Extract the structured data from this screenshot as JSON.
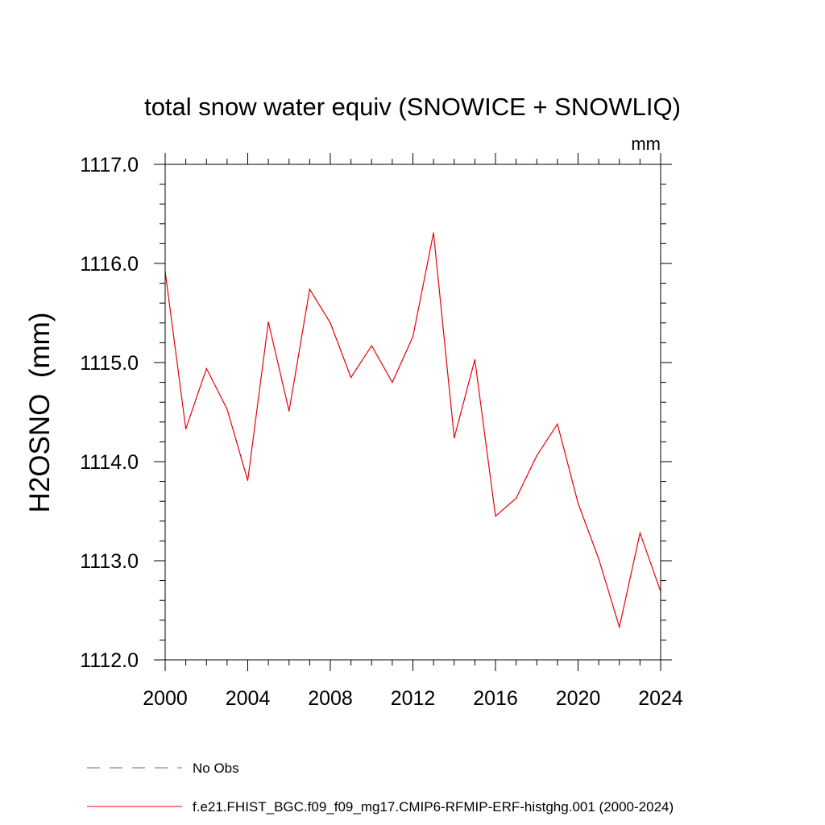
{
  "chart_data": {
    "type": "line",
    "title": "total snow water equiv (SNOWICE + SNOWLIQ)",
    "units_label": "mm",
    "ylabel": "H2OSNO  (mm)",
    "xlabel": "",
    "xlim": [
      2000,
      2024
    ],
    "ylim": [
      1112.0,
      1117.0
    ],
    "x_ticks": [
      2000,
      2004,
      2008,
      2012,
      2016,
      2020,
      2024
    ],
    "x_tick_labels": [
      "2000",
      "2004",
      "2008",
      "2012",
      "2016",
      "2020",
      "2024"
    ],
    "y_ticks": [
      1112.0,
      1113.0,
      1114.0,
      1115.0,
      1116.0,
      1117.0
    ],
    "y_tick_labels": [
      "1112.0",
      "1113.0",
      "1114.0",
      "1115.0",
      "1116.0",
      "1117.0"
    ],
    "grid": false,
    "legend_position": "bottom",
    "series": [
      {
        "name": "f.e21.FHIST_BGC.f09_f09_mg17.CMIP6-RFMIP-ERF-histghg.001 (2000-2024)",
        "color": "#e8000b",
        "style": "solid",
        "x": [
          2000,
          2001,
          2002,
          2003,
          2004,
          2005,
          2006,
          2007,
          2008,
          2009,
          2010,
          2011,
          2012,
          2013,
          2014,
          2015,
          2016,
          2017,
          2018,
          2019,
          2020,
          2021,
          2022,
          2023,
          2024
        ],
        "values": [
          1115.92,
          1114.33,
          1114.94,
          1114.53,
          1113.81,
          1115.41,
          1114.51,
          1115.74,
          1115.4,
          1114.85,
          1115.17,
          1114.8,
          1115.26,
          1116.31,
          1114.24,
          1115.03,
          1113.45,
          1113.63,
          1114.06,
          1114.38,
          1113.58,
          1113.02,
          1112.33,
          1113.28,
          1112.69
        ]
      }
    ],
    "legend": [
      {
        "label": "No Obs",
        "color": "#6b5fb5",
        "style": "dashed"
      },
      {
        "label": "f.e21.FHIST_BGC.f09_f09_mg17.CMIP6-RFMIP-ERF-histghg.001 (2000-2024)",
        "color": "#e8000b",
        "style": "solid"
      }
    ]
  }
}
